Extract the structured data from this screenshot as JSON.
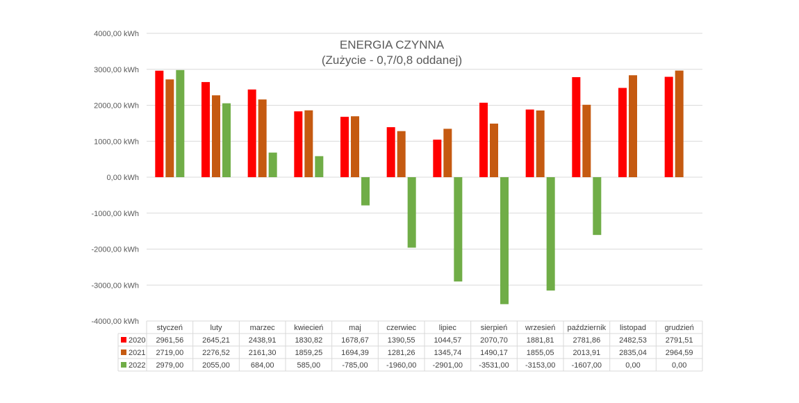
{
  "chart_data": {
    "type": "bar",
    "title": "ENERGIA CZYNNA",
    "subtitle": "(Zużycie - 0,7/0,8 oddanej)",
    "unit": "kWh",
    "ylim": [
      -4000,
      4000
    ],
    "ytick_labels": [
      "4000,00 kWh",
      "3000,00 kWh",
      "2000,00 kWh",
      "1000,00 kWh",
      "0,00 kWh",
      "-1000,00 kWh",
      "-2000,00 kWh",
      "-3000,00 kWh",
      "-4000,00 kWh"
    ],
    "ytick_values": [
      4000,
      3000,
      2000,
      1000,
      0,
      -1000,
      -2000,
      -3000,
      -4000
    ],
    "grid": true,
    "legend": "data-table",
    "categories": [
      "styczeń",
      "luty",
      "marzec",
      "kwiecień",
      "maj",
      "czerwiec",
      "lipiec",
      "sierpień",
      "wrzesień",
      "październik",
      "listopad",
      "grudzień"
    ],
    "series": [
      {
        "name": "2020",
        "color": "#ff0000",
        "values": [
          2961.56,
          2645.21,
          2438.91,
          1830.82,
          1678.67,
          1390.55,
          1044.57,
          2070.7,
          1881.81,
          2781.86,
          2482.53,
          2791.51
        ],
        "labels": [
          "2961,56",
          "2645,21",
          "2438,91",
          "1830,82",
          "1678,67",
          "1390,55",
          "1044,57",
          "2070,70",
          "1881,81",
          "2781,86",
          "2482,53",
          "2791,51"
        ]
      },
      {
        "name": "2021",
        "color": "#c55a11",
        "values": [
          2719.0,
          2276.52,
          2161.3,
          1859.25,
          1694.39,
          1281.26,
          1345.74,
          1490.17,
          1855.05,
          2013.91,
          2835.04,
          2964.59
        ],
        "labels": [
          "2719,00",
          "2276,52",
          "2161,30",
          "1859,25",
          "1694,39",
          "1281,26",
          "1345,74",
          "1490,17",
          "1855,05",
          "2013,91",
          "2835,04",
          "2964,59"
        ]
      },
      {
        "name": "2022",
        "color": "#70ad47",
        "values": [
          2979.0,
          2055.0,
          684.0,
          585.0,
          -785.0,
          -1960.0,
          -2901.0,
          -3531.0,
          -3153.0,
          -1607.0,
          0.0,
          0.0
        ],
        "labels": [
          "2979,00",
          "2055,00",
          "684,00",
          "585,00",
          "-785,00",
          "-1960,00",
          "-2901,00",
          "-3531,00",
          "-3153,00",
          "-1607,00",
          "0,00",
          "0,00"
        ]
      }
    ]
  }
}
